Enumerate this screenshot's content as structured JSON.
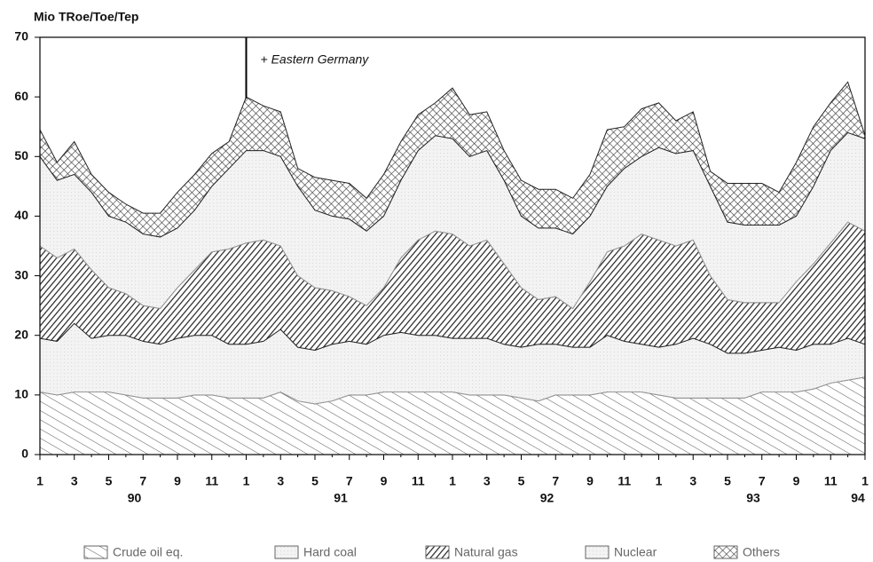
{
  "chart_data": {
    "type": "stacked-area",
    "y_label": "Mio TRoe/Toe/Tep",
    "annotation": "+ Eastern Germany",
    "annotation_index": 12,
    "categories": [
      "1",
      null,
      "3",
      null,
      "5",
      null,
      "7",
      null,
      "9",
      null,
      "11",
      null,
      "1",
      null,
      "3",
      null,
      "5",
      null,
      "7",
      null,
      "9",
      null,
      "11",
      null,
      "1",
      null,
      "3",
      null,
      "5",
      null,
      "7",
      null,
      "9",
      null,
      "11",
      null,
      "1",
      null,
      "3",
      null,
      "5",
      null,
      "7",
      null,
      "9",
      null,
      "11",
      null,
      "1"
    ],
    "year_labels": [
      "90",
      "91",
      "92",
      "93",
      "94"
    ],
    "ylim": [
      0,
      70
    ],
    "yticks": [
      0,
      10,
      20,
      30,
      40,
      50,
      60,
      70
    ],
    "series": [
      {
        "name": "Crude oil eq.",
        "color": "#555555",
        "pattern": "sparse-back-diagonal",
        "values": [
          10.5,
          10,
          10.5,
          10.5,
          10.5,
          10,
          9.5,
          9.5,
          9.5,
          10,
          10,
          9.5,
          9.5,
          9.5,
          10.5,
          9,
          8.5,
          9,
          10,
          10,
          10.5,
          10.5,
          10.5,
          10.5,
          10.5,
          10,
          10,
          10,
          9.5,
          9,
          10,
          10,
          10,
          10.5,
          10.5,
          10.5,
          10,
          9.5,
          9.5,
          9.5,
          9.5,
          9.5,
          10.5,
          10.5,
          10.5,
          11,
          12,
          12.5,
          13
        ]
      },
      {
        "name": "Hard coal",
        "color": "#e8e8e8",
        "pattern": "light",
        "values": [
          9,
          9,
          11.5,
          9,
          9.5,
          10,
          9.5,
          9,
          10,
          10,
          10,
          9,
          9,
          9.5,
          10.5,
          9,
          9,
          9.5,
          9,
          8.5,
          9.5,
          10,
          9.5,
          9.5,
          9,
          9.5,
          9.5,
          8.5,
          8.5,
          9.5,
          8.5,
          8,
          8,
          9.5,
          8.5,
          8,
          8,
          9,
          10,
          9,
          7.5,
          7.5,
          7,
          7.5,
          7,
          7.5,
          6.5,
          7,
          5.5
        ]
      },
      {
        "name": "Natural gas",
        "color": "#222222",
        "pattern": "dense-diagonal",
        "values": [
          15.5,
          14,
          12.5,
          11.5,
          8,
          7,
          6,
          6,
          8.5,
          11,
          14,
          16,
          17,
          17,
          14,
          12,
          10.5,
          9,
          7.5,
          6.5,
          8,
          12.5,
          16,
          17.5,
          17.5,
          15.5,
          16.5,
          13.5,
          10,
          7.5,
          8,
          6.5,
          11,
          14,
          16,
          18.5,
          18,
          16.5,
          16.5,
          11.5,
          9,
          8.5,
          8,
          7.5,
          11.5,
          13.5,
          17,
          19.5,
          19
        ]
      },
      {
        "name": "Nuclear",
        "color": "#f2f2f2",
        "pattern": "light",
        "values": [
          15,
          13,
          12.5,
          13,
          12,
          12,
          12,
          12,
          10,
          10,
          11,
          13.5,
          15.5,
          15,
          15,
          15,
          13,
          12.5,
          13,
          12.5,
          12,
          13,
          15,
          16,
          16,
          15,
          15,
          14,
          12,
          12,
          11.5,
          12.5,
          11,
          11,
          13,
          13,
          15.5,
          15.5,
          15,
          15,
          13,
          13,
          13,
          13,
          11,
          13,
          15.5,
          15,
          15.5
        ]
      },
      {
        "name": "Others",
        "color": "#333333",
        "pattern": "crosshatch",
        "values": [
          4.5,
          3,
          5.5,
          3,
          4,
          3,
          3.5,
          4,
          6,
          6,
          5.5,
          4.5,
          9,
          7.5,
          7.5,
          3,
          5.5,
          6,
          6,
          5.5,
          7,
          6.5,
          6,
          5.5,
          8.5,
          7,
          6.5,
          5,
          6,
          6.5,
          6.5,
          6,
          7,
          9.5,
          7,
          8,
          7.5,
          5.5,
          6.5,
          2.5,
          6.5,
          7,
          7,
          5.5,
          9,
          10,
          8,
          8.5,
          0.5
        ]
      }
    ]
  }
}
